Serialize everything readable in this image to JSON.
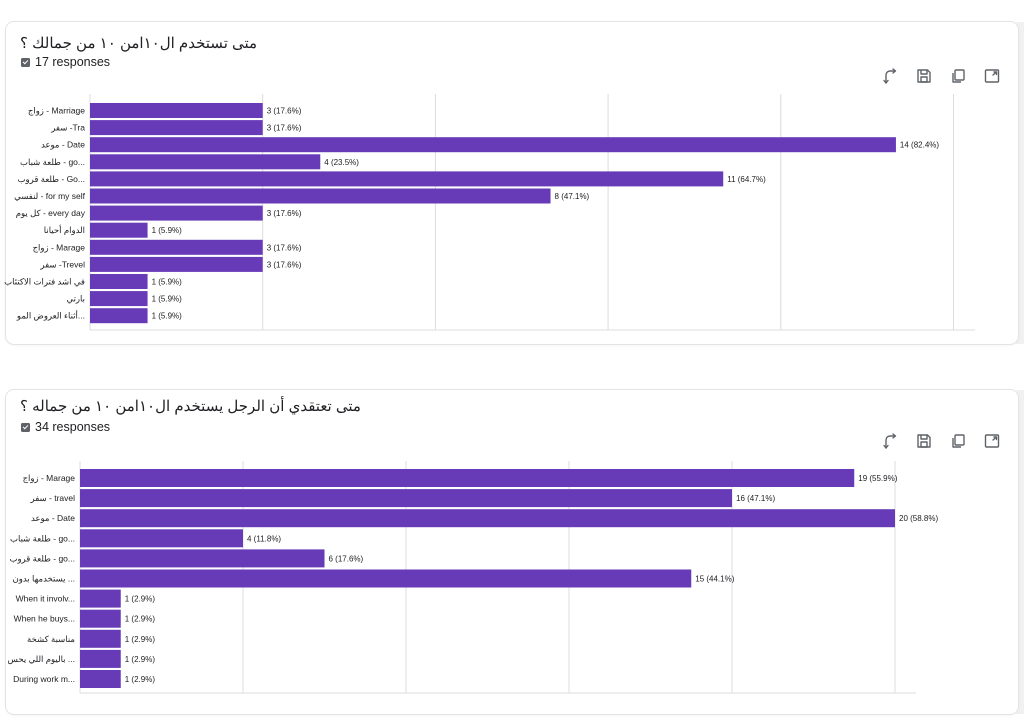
{
  "colors": {
    "bar": "#673ab7",
    "grid": "#dadce0",
    "text": "#202124"
  },
  "toolbar": {
    "icons": [
      "swap-axes-icon",
      "save-icon",
      "copy-icon",
      "expand-icon"
    ]
  },
  "question1": {
    "title": "متى تستخدم ال١٠امن ١٠ من جمالك ؟",
    "responses": "17 responses"
  },
  "question2": {
    "title": "متى تعتقدي أن الرجل يستخدم  ال١٠امن ١٠ من جماله ؟",
    "responses": "34 responses"
  },
  "chart_data": [
    {
      "type": "bar",
      "orientation": "horizontal",
      "title": "متى تستخدم ال١٠امن ١٠ من جمالك ؟",
      "responses": 17,
      "xlim": [
        0,
        15
      ],
      "categories": [
        "زواج - Marriage",
        "سفر -Tra",
        "موعد - Date",
        "طلعة شباب - go...",
        "طلعة قروب - Go...",
        "لنفسي - for my self",
        "كل يوم - every day",
        "الدوام أحيانا",
        "زواج - Marage",
        "سفر -Trevel",
        "في اشد فترات الاكتئاب",
        "بارتي",
        "أثناء العروض المو..."
      ],
      "values": [
        3,
        3,
        14,
        4,
        11,
        8,
        3,
        1,
        3,
        3,
        1,
        1,
        1
      ],
      "labels": [
        "3 (17.6%)",
        "3 (17.6%)",
        "14 (82.4%)",
        "4 (23.5%)",
        "11 (64.7%)",
        "8 (47.1%)",
        "3 (17.6%)",
        "1 (5.9%)",
        "3 (17.6%)",
        "3 (17.6%)",
        "1 (5.9%)",
        "1 (5.9%)",
        "1 (5.9%)"
      ]
    },
    {
      "type": "bar",
      "orientation": "horizontal",
      "title": "متى تعتقدي أن الرجل يستخدم  ال١٠امن ١٠ من جماله ؟",
      "responses": 34,
      "xlim": [
        0,
        20
      ],
      "categories": [
        "زواج - Marage",
        "سفر - travel",
        "موعد - Date",
        "طلعة شباب - go...",
        "طلعة قروب - go...",
        "يستخدمها بدون ...",
        "When it involv...",
        "When he buys...",
        "مناسبة كشخة",
        "باليوم اللي يحس ...",
        "During work m..."
      ],
      "values": [
        19,
        16,
        20,
        4,
        6,
        15,
        1,
        1,
        1,
        1,
        1
      ],
      "labels": [
        "19 (55.9%)",
        "16 (47.1%)",
        "20 (58.8%)",
        "4 (11.8%)",
        "6 (17.6%)",
        "15 (44.1%)",
        "1 (2.9%)",
        "1 (2.9%)",
        "1 (2.9%)",
        "1 (2.9%)",
        "1 (2.9%)"
      ]
    }
  ]
}
